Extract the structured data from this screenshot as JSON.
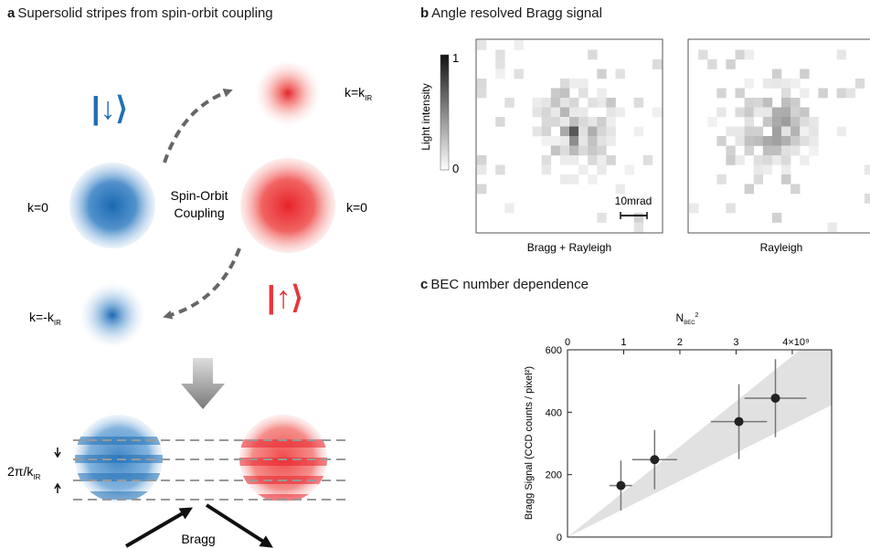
{
  "panel_a": {
    "letter": "a",
    "title": "Supersolid stripes from spin-orbit coupling",
    "state_down_label": "|↓⟩",
    "state_up_label": "|↑⟩",
    "k_zero_left": "k=0",
    "k_zero_right": "k=0",
    "k_plus_main": "k=k",
    "k_plus_sub": "IR",
    "k_minus_main": "k=-k",
    "k_minus_sub": "IR",
    "soc_line1": "Spin-Orbit",
    "soc_line2": "Coupling",
    "period_main": "2π/k",
    "period_sub": "IR",
    "bragg_label": "Bragg",
    "colors": {
      "blue": "#1f6fb5",
      "red": "#e8363a",
      "arrow_gray": "#666666"
    }
  },
  "panel_b": {
    "letter": "b",
    "title": "Angle resolved Bragg signal",
    "colorbar_label": "Light intensity",
    "colorbar_max": "1",
    "colorbar_min": "0",
    "scalebar_label": "10mrad",
    "image_left_caption": "Bragg + Rayleigh",
    "image_right_caption": "Rayleigh"
  },
  "panel_c": {
    "letter": "c",
    "title": "BEC number dependence"
  },
  "chart_data": {
    "type": "scatter",
    "title": "BEC number dependence",
    "xlabel_main": "N",
    "xlabel_sub": "BEC",
    "xlabel_sup": "2",
    "ylabel": "Bragg Signal (CCD counts / pixel²)",
    "x_axis_position": "top",
    "xlim": [
      0,
      4.7
    ],
    "ylim": [
      0,
      600
    ],
    "x_ticks": [
      0,
      1,
      2,
      3
    ],
    "x_tick_last_label": "4×10⁹",
    "x_tick_last_value": 4,
    "y_ticks": [
      0,
      200,
      400,
      600
    ],
    "points": [
      {
        "x": 0.95,
        "y": 165,
        "xerr": 0.2,
        "yerr": 80
      },
      {
        "x": 1.55,
        "y": 248,
        "xerr": 0.4,
        "yerr": 95
      },
      {
        "x": 3.05,
        "y": 370,
        "xerr": 0.5,
        "yerr": 120
      },
      {
        "x": 3.7,
        "y": 445,
        "xerr": 0.55,
        "yerr": 125
      }
    ],
    "band": {
      "lower_slope": 90,
      "upper_slope": 145
    },
    "grid": false,
    "legend": "none"
  }
}
